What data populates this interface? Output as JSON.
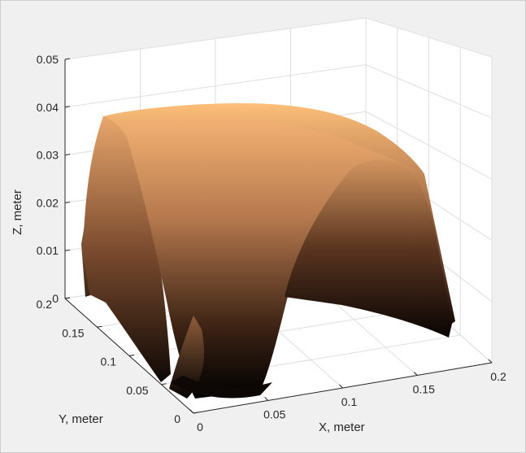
{
  "chart_data": {
    "type": "surface",
    "title": "",
    "xlabel": "X, meter",
    "ylabel": "Y, meter",
    "zlabel": "Z, meter",
    "xlim": [
      0,
      0.2
    ],
    "ylim": [
      0,
      0.2
    ],
    "zlim": [
      0,
      0.05
    ],
    "x_ticks": [
      "0",
      "0.05",
      "0.1",
      "0.15",
      "0.2"
    ],
    "y_ticks": [
      "0",
      "0.05",
      "0.1",
      "0.15",
      "0.2"
    ],
    "z_ticks": [
      "0",
      "0.01",
      "0.02",
      "0.03",
      "0.04",
      "0.05"
    ],
    "grid": true,
    "colormap": "copper",
    "colormap_colors": [
      "#000000",
      "#ffc77f"
    ],
    "surface_description_points": {
      "peak_z": 0.04,
      "corner_near_origin_z": 0.0
    }
  }
}
